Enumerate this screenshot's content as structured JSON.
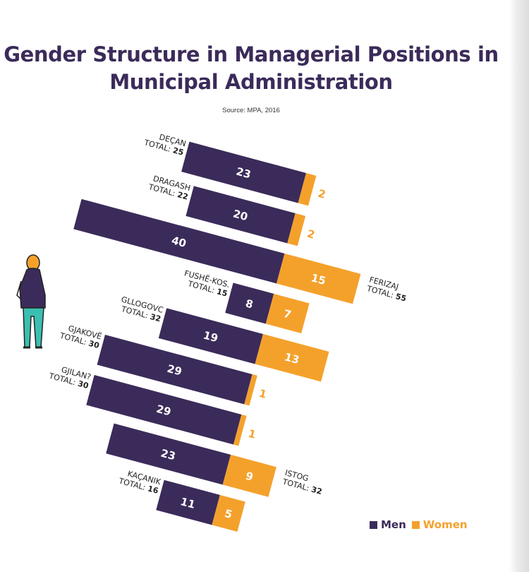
{
  "title": "Gender Structure in Managerial Positions in Municipal Administration",
  "source": "Source: MPA, 2016",
  "colors": {
    "men": "#3b2b5a",
    "women": "#f4a12c",
    "title": "#3b2b5a",
    "label_dark": "#222222"
  },
  "legend": {
    "men": "Men",
    "women": "Women"
  },
  "total_prefix": "TOTAL:",
  "chart_data": {
    "type": "bar",
    "orientation": "horizontal-diverging-stacked",
    "categories": [
      "DEÇAN",
      "DRAGASH",
      "FERIZAJ",
      "FUSHË-KOS.",
      "GLLOGOVC",
      "GJAKOVË",
      "GJILAN?",
      "ISTOG",
      "KAÇANIK"
    ],
    "totals": [
      25,
      22,
      55,
      15,
      32,
      30,
      30,
      32,
      16
    ],
    "series": [
      {
        "name": "Men",
        "values": [
          23,
          20,
          40,
          8,
          19,
          29,
          29,
          23,
          11
        ]
      },
      {
        "name": "Women",
        "values": [
          2,
          2,
          15,
          7,
          13,
          1,
          1,
          9,
          5
        ]
      }
    ],
    "title": "Gender Structure in Managerial Positions in Municipal Administration",
    "legend_position": "bottom-right"
  }
}
